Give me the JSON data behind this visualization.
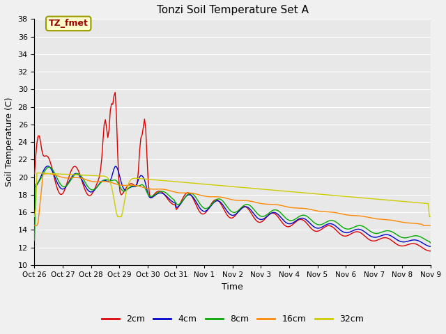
{
  "title": "Tonzi Soil Temperature Set A",
  "xlabel": "Time",
  "ylabel": "Soil Temperature (C)",
  "ylim": [
    10,
    38
  ],
  "yticks": [
    10,
    12,
    14,
    16,
    18,
    20,
    22,
    24,
    26,
    28,
    30,
    32,
    34,
    36,
    38
  ],
  "xtick_labels": [
    "Oct 26",
    "Oct 27",
    "Oct 28",
    "Oct 29",
    "Oct 30",
    "Oct 31",
    "Nov 1",
    "Nov 2",
    "Nov 3",
    "Nov 4",
    "Nov 5",
    "Nov 6",
    "Nov 7",
    "Nov 8",
    "Nov 9"
  ],
  "legend_label_box": "TZ_fmet",
  "legend_box_bg": "#ffffcc",
  "legend_box_border": "#999900",
  "legend_box_text": "#990000",
  "series_colors": [
    "#dd0000",
    "#0000cc",
    "#00aa00",
    "#ff8800",
    "#cccc00"
  ],
  "series_labels": [
    "2cm",
    "4cm",
    "8cm",
    "16cm",
    "32cm"
  ],
  "fig_bg": "#f0f0f0",
  "plot_bg": "#e8e8e8",
  "grid_color": "#ffffff"
}
